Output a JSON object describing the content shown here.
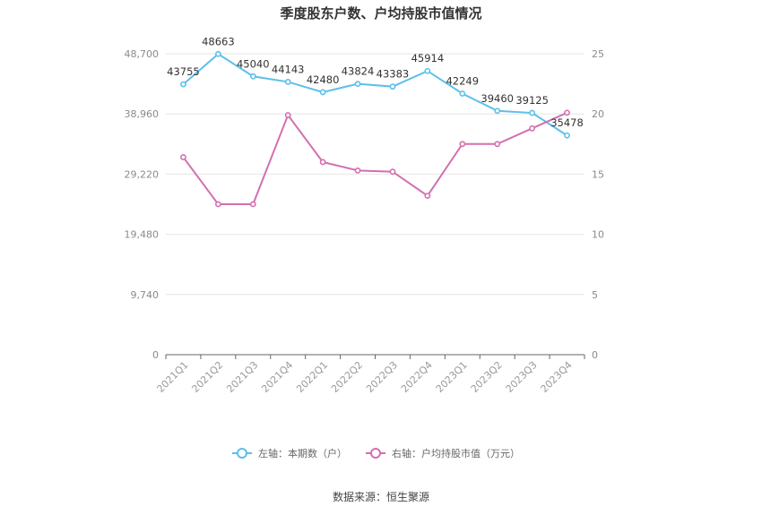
{
  "chart_data": {
    "type": "line",
    "title": "季度股东户数、户均持股市值情况",
    "categories": [
      "2021Q1",
      "2021Q2",
      "2021Q3",
      "2021Q4",
      "2022Q1",
      "2022Q2",
      "2022Q3",
      "2022Q4",
      "2023Q1",
      "2023Q2",
      "2023Q3",
      "2023Q4"
    ],
    "left_axis": {
      "ticks": [
        "0",
        "9,740",
        "19,480",
        "29,220",
        "38,960",
        "48,700"
      ],
      "ylim": [
        0,
        48700
      ]
    },
    "right_axis": {
      "ticks": [
        "0",
        "5",
        "10",
        "15",
        "20",
        "25"
      ],
      "ylim": [
        0,
        25
      ]
    },
    "series": [
      {
        "name": "左轴：本期数（户）",
        "axis": "left",
        "color": "#5bc0eb",
        "values": [
          43755,
          48663,
          45040,
          44143,
          42480,
          43824,
          43383,
          45914,
          42249,
          39460,
          39125,
          35478
        ],
        "labels": [
          "43755",
          "48663",
          "45040",
          "44143",
          "42480",
          "43824",
          "43383",
          "45914",
          "42249",
          "39460",
          "39125",
          "35478"
        ]
      },
      {
        "name": "右轴：户均持股市值（万元）",
        "axis": "right",
        "color": "#d36fb0",
        "values": [
          16.4,
          12.5,
          12.5,
          19.9,
          16.0,
          15.3,
          15.2,
          13.2,
          17.5,
          17.5,
          18.8,
          20.1
        ]
      }
    ],
    "grid": true,
    "legend_position": "bottom"
  },
  "footer": {
    "source": "数据来源：恒生聚源"
  }
}
